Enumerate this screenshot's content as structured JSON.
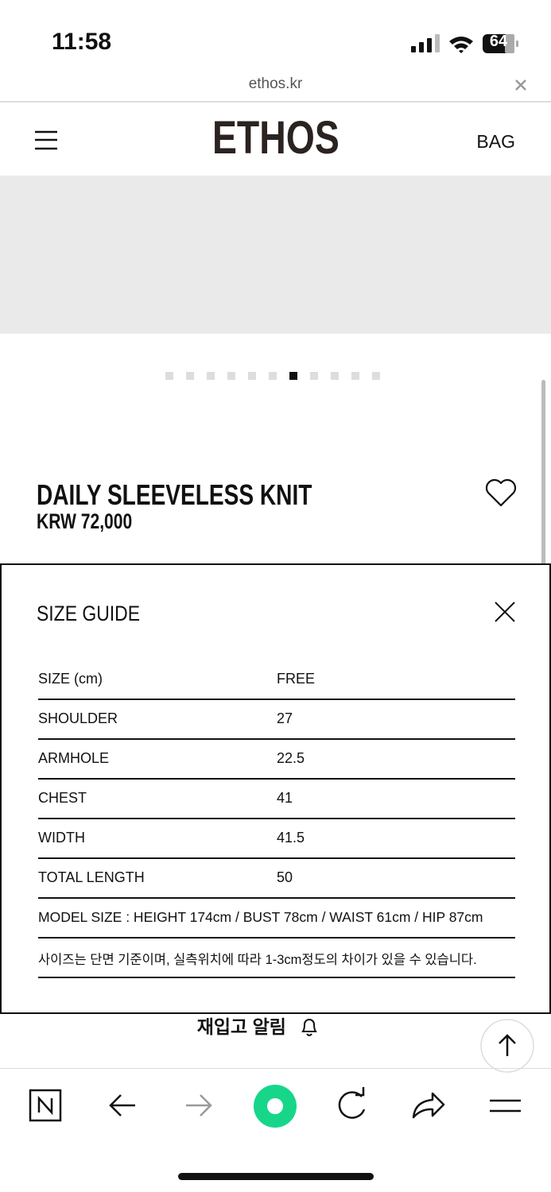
{
  "status_bar": {
    "time": "11:58",
    "battery": "64"
  },
  "browser": {
    "url": "ethos.kr"
  },
  "header": {
    "logo": "ETHOS",
    "bag": "BAG"
  },
  "product": {
    "name": "DAILY SLEEVELESS KNIT",
    "price": "KRW 72,000"
  },
  "size_guide": {
    "title": "SIZE GUIDE",
    "rows": [
      [
        "SIZE (cm)",
        "FREE"
      ],
      [
        "SHOULDER",
        "27"
      ],
      [
        "ARMHOLE",
        "22.5"
      ],
      [
        "CHEST",
        "41"
      ],
      [
        "WIDTH",
        "41.5"
      ],
      [
        "TOTAL LENGTH",
        "50"
      ]
    ],
    "notes": [
      "MODEL SIZE : HEIGHT 174cm / BUST 78cm / WAIST 61cm / HIP 87cm",
      "사이즈는 단면 기준이며, 실측위치에 따라 1-3cm정도의 차이가 있을 수 있습니다."
    ]
  },
  "restock": {
    "label": "재입고 알림"
  }
}
